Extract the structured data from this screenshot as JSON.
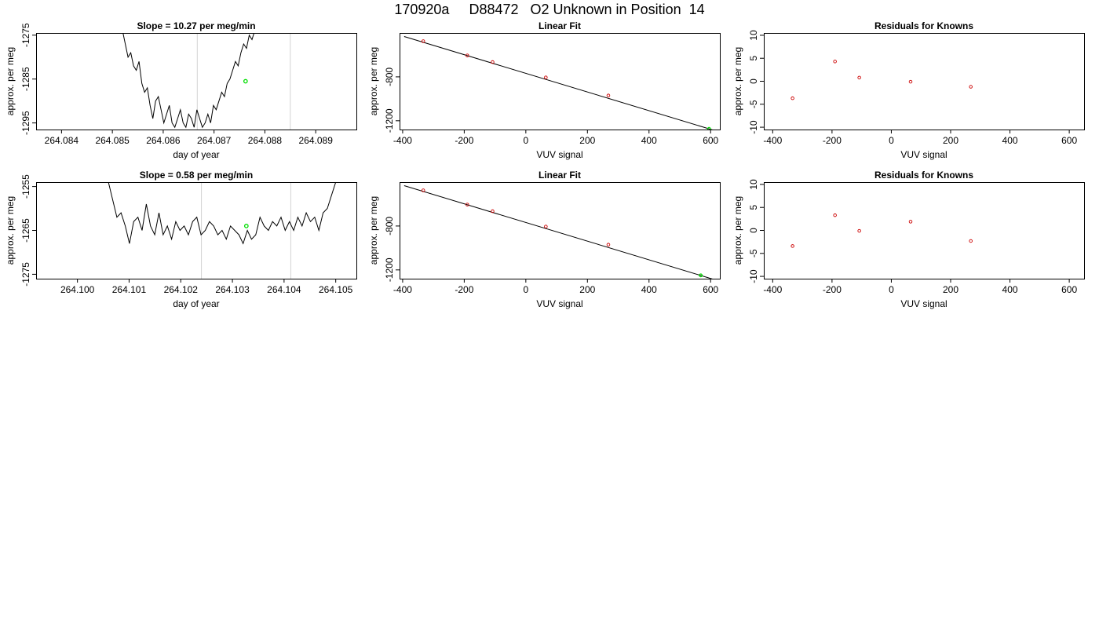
{
  "page": {
    "title": "170920a     D88472   O2 Unknown in Position  14"
  },
  "chart_data": [
    {
      "id": "trace1",
      "type": "line",
      "title": "Slope =  10.27  per meg/min",
      "xlabel": "day of year",
      "ylabel": "approx. per meg",
      "xlim": [
        264.0835,
        264.0898
      ],
      "ylim": [
        -1296.5,
        -1274.5
      ],
      "xticks": [
        "264.084",
        "264.085",
        "264.086",
        "264.087",
        "264.088",
        "264.089"
      ],
      "yticks": [
        "-1275",
        "-1285",
        "-1295"
      ],
      "vlines": [
        264.08667,
        264.0885
      ],
      "grid": false,
      "x_start": 264.0852,
      "x_end": 264.0878,
      "x_gap": [
        264.0859,
        264.0865
      ],
      "trace": [
        -1274,
        -1277,
        -1280,
        -1279,
        -1282,
        -1283,
        -1281,
        -1286,
        -1288,
        -1287,
        -1291,
        -1294,
        -1290,
        -1289,
        -1292,
        -1295,
        -1293,
        -1291,
        -1295,
        -1296,
        -1294,
        -1292,
        -1295,
        -1296,
        -1293,
        -1294,
        -1296,
        -1292,
        -1294,
        -1296,
        -1295,
        -1293,
        -1295,
        -1291,
        -1292,
        -1290,
        -1288,
        -1289,
        -1286,
        -1285,
        -1283,
        -1281,
        -1282,
        -1279,
        -1277,
        -1278,
        -1275,
        -1276,
        -1274
      ],
      "marker": [
        264.08762,
        -1285.5
      ],
      "colors": {
        "line": "#000000",
        "vline": "#d3d3d3",
        "marker": "#00dd00"
      }
    },
    {
      "id": "fit1",
      "type": "scatter",
      "title": "Linear Fit",
      "xlabel": "VUV signal",
      "ylabel": "approx. per meg",
      "xlim": [
        -410,
        630
      ],
      "ylim": [
        -1280,
        -400
      ],
      "xticks": [
        -400,
        -200,
        0,
        200,
        400,
        600
      ],
      "yticks": [
        -800,
        -1200
      ],
      "grid": false,
      "points": [
        [
          -333,
          -475
        ],
        [
          -190,
          -605
        ],
        [
          -108,
          -665
        ],
        [
          65,
          -805
        ],
        [
          268,
          -970
        ]
      ],
      "fit_line": [
        [
          -395,
          -432
        ],
        [
          608,
          -1285
        ]
      ],
      "unknown_point": [
        595,
        -1274
      ],
      "colors": {
        "points": "#cc0000",
        "line": "#000000",
        "unknown": "#00dd00"
      }
    },
    {
      "id": "resid1",
      "type": "scatter",
      "title": "Residuals for Knowns",
      "xlabel": "VUV signal",
      "ylabel": "approx. per meg",
      "xlim": [
        -430,
        650
      ],
      "ylim": [
        -10.5,
        10.5
      ],
      "xticks": [
        -400,
        -200,
        0,
        200,
        400,
        600
      ],
      "yticks": [
        10,
        5,
        0,
        -5,
        -10
      ],
      "grid": false,
      "points": [
        [
          -333,
          -3.7
        ],
        [
          -190,
          4.3
        ],
        [
          -108,
          0.8
        ],
        [
          65,
          -0.1
        ],
        [
          268,
          -1.2
        ]
      ],
      "colors": {
        "points": "#cc0000"
      }
    },
    {
      "id": "trace2",
      "type": "line",
      "title": "Slope =  0.58  per meg/min",
      "xlabel": "day of year",
      "ylabel": "approx. per meg",
      "xlim": [
        264.0992,
        264.1054
      ],
      "ylim": [
        -1276,
        -1254
      ],
      "xticks": [
        "264.100",
        "264.101",
        "264.102",
        "264.103",
        "264.104",
        "264.105"
      ],
      "yticks": [
        "-1255",
        "-1265",
        "-1275"
      ],
      "vlines": [
        264.1024,
        264.10413
      ],
      "grid": false,
      "x_start": 264.1006,
      "x_end": 264.105,
      "trace": [
        -1254,
        -1258,
        -1262,
        -1261,
        -1264,
        -1268,
        -1263,
        -1262,
        -1265,
        -1259,
        -1264,
        -1266,
        -1261,
        -1266,
        -1264,
        -1267,
        -1263,
        -1265,
        -1264,
        -1266,
        -1263,
        -1262,
        -1266,
        -1265,
        -1263,
        -1264,
        -1266,
        -1265,
        -1267,
        -1264,
        -1265,
        -1266,
        -1268,
        -1265,
        -1267,
        -1266,
        -1262,
        -1264,
        -1265,
        -1263,
        -1264,
        -1262,
        -1265,
        -1263,
        -1265,
        -1262,
        -1264,
        -1261,
        -1263,
        -1262,
        -1265,
        -1261,
        -1260,
        -1257,
        -1254
      ],
      "marker": [
        264.10327,
        -1264.0
      ],
      "colors": {
        "line": "#000000",
        "vline": "#d3d3d3",
        "marker": "#00dd00"
      }
    },
    {
      "id": "fit2",
      "type": "scatter",
      "title": "Linear Fit",
      "xlabel": "VUV signal",
      "ylabel": "approx. per meg",
      "xlim": [
        -410,
        630
      ],
      "ylim": [
        -1280,
        -400
      ],
      "xticks": [
        -400,
        -200,
        0,
        200,
        400,
        600
      ],
      "yticks": [
        -800,
        -1200
      ],
      "grid": false,
      "points": [
        [
          -333,
          -475
        ],
        [
          -190,
          -605
        ],
        [
          -108,
          -665
        ],
        [
          65,
          -805
        ],
        [
          268,
          -970
        ]
      ],
      "fit_line": [
        [
          -395,
          -432
        ],
        [
          608,
          -1285
        ]
      ],
      "unknown_point": [
        568,
        -1250
      ],
      "colors": {
        "points": "#cc0000",
        "line": "#000000",
        "unknown": "#00dd00"
      }
    },
    {
      "id": "resid2",
      "type": "scatter",
      "title": "Residuals for Knowns",
      "xlabel": "VUV signal",
      "ylabel": "approx. per meg",
      "xlim": [
        -430,
        650
      ],
      "ylim": [
        -10.5,
        10.5
      ],
      "xticks": [
        -400,
        -200,
        0,
        200,
        400,
        600
      ],
      "yticks": [
        10,
        5,
        0,
        -5,
        -10
      ],
      "grid": false,
      "points": [
        [
          -333,
          -3.4
        ],
        [
          -190,
          3.3
        ],
        [
          -108,
          -0.1
        ],
        [
          65,
          1.9
        ],
        [
          268,
          -2.3
        ]
      ],
      "colors": {
        "points": "#cc0000"
      }
    }
  ]
}
